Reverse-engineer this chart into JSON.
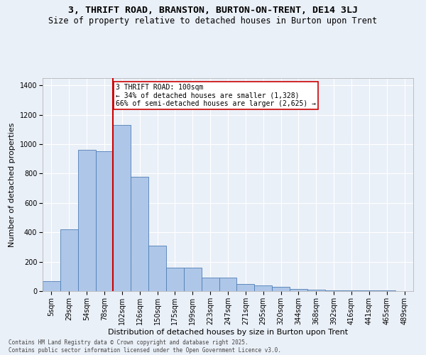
{
  "title": "3, THRIFT ROAD, BRANSTON, BURTON-ON-TRENT, DE14 3LJ",
  "subtitle": "Size of property relative to detached houses in Burton upon Trent",
  "xlabel": "Distribution of detached houses by size in Burton upon Trent",
  "ylabel": "Number of detached properties",
  "footer_line1": "Contains HM Land Registry data © Crown copyright and database right 2025.",
  "footer_line2": "Contains public sector information licensed under the Open Government Licence v3.0.",
  "categories": [
    "5sqm",
    "29sqm",
    "54sqm",
    "78sqm",
    "102sqm",
    "126sqm",
    "150sqm",
    "175sqm",
    "199sqm",
    "223sqm",
    "247sqm",
    "271sqm",
    "295sqm",
    "320sqm",
    "344sqm",
    "368sqm",
    "392sqm",
    "416sqm",
    "441sqm",
    "465sqm",
    "489sqm"
  ],
  "values": [
    70,
    420,
    960,
    950,
    1130,
    780,
    310,
    160,
    160,
    90,
    90,
    50,
    40,
    30,
    15,
    10,
    5,
    5,
    3,
    3,
    2
  ],
  "bar_color": "#aec6e8",
  "bar_edge_color": "#4f7fb5",
  "vline_x_index": 4,
  "vline_color": "#cc0000",
  "annotation_text": "3 THRIFT ROAD: 100sqm\n← 34% of detached houses are smaller (1,328)\n66% of semi-detached houses are larger (2,625) →",
  "annotation_box_color": "#cc0000",
  "ylim": [
    0,
    1450
  ],
  "yticks": [
    0,
    200,
    400,
    600,
    800,
    1000,
    1200,
    1400
  ],
  "bg_color": "#eaf0f8",
  "plot_bg_color": "#eaf0f8",
  "grid_color": "#ffffff",
  "title_fontsize": 9.5,
  "subtitle_fontsize": 8.5,
  "xlabel_fontsize": 8,
  "ylabel_fontsize": 8,
  "tick_fontsize": 7,
  "annotation_fontsize": 7,
  "footer_fontsize": 5.5
}
